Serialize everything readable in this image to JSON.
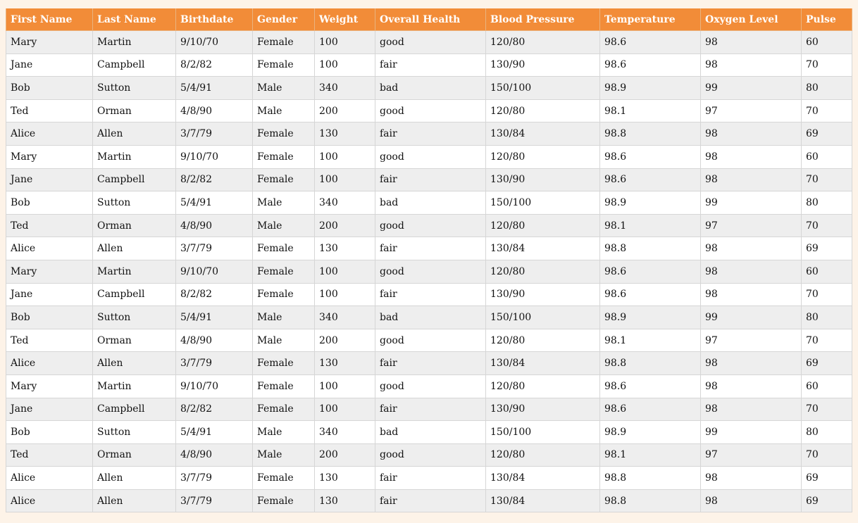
{
  "table": {
    "header_color": "#f28c38",
    "columns": [
      "First Name",
      "Last Name",
      "Birthdate",
      "Gender",
      "Weight",
      "Overall Health",
      "Blood Pressure",
      "Temperature",
      "Oxygen Level",
      "Pulse"
    ],
    "rows": [
      [
        "Mary",
        "Martin",
        "9/10/70",
        "Female",
        "100",
        "good",
        "120/80",
        "98.6",
        "98",
        "60"
      ],
      [
        "Jane",
        "Campbell",
        "8/2/82",
        "Female",
        "100",
        "fair",
        "130/90",
        "98.6",
        "98",
        "70"
      ],
      [
        "Bob",
        "Sutton",
        "5/4/91",
        "Male",
        "340",
        "bad",
        "150/100",
        "98.9",
        "99",
        "80"
      ],
      [
        "Ted",
        "Orman",
        "4/8/90",
        "Male",
        "200",
        "good",
        "120/80",
        "98.1",
        "97",
        "70"
      ],
      [
        "Alice",
        "Allen",
        "3/7/79",
        "Female",
        "130",
        "fair",
        "130/84",
        "98.8",
        "98",
        "69"
      ],
      [
        "Mary",
        "Martin",
        "9/10/70",
        "Female",
        "100",
        "good",
        "120/80",
        "98.6",
        "98",
        "60"
      ],
      [
        "Jane",
        "Campbell",
        "8/2/82",
        "Female",
        "100",
        "fair",
        "130/90",
        "98.6",
        "98",
        "70"
      ],
      [
        "Bob",
        "Sutton",
        "5/4/91",
        "Male",
        "340",
        "bad",
        "150/100",
        "98.9",
        "99",
        "80"
      ],
      [
        "Ted",
        "Orman",
        "4/8/90",
        "Male",
        "200",
        "good",
        "120/80",
        "98.1",
        "97",
        "70"
      ],
      [
        "Alice",
        "Allen",
        "3/7/79",
        "Female",
        "130",
        "fair",
        "130/84",
        "98.8",
        "98",
        "69"
      ],
      [
        "Mary",
        "Martin",
        "9/10/70",
        "Female",
        "100",
        "good",
        "120/80",
        "98.6",
        "98",
        "60"
      ],
      [
        "Jane",
        "Campbell",
        "8/2/82",
        "Female",
        "100",
        "fair",
        "130/90",
        "98.6",
        "98",
        "70"
      ],
      [
        "Bob",
        "Sutton",
        "5/4/91",
        "Male",
        "340",
        "bad",
        "150/100",
        "98.9",
        "99",
        "80"
      ],
      [
        "Ted",
        "Orman",
        "4/8/90",
        "Male",
        "200",
        "good",
        "120/80",
        "98.1",
        "97",
        "70"
      ],
      [
        "Alice",
        "Allen",
        "3/7/79",
        "Female",
        "130",
        "fair",
        "130/84",
        "98.8",
        "98",
        "69"
      ],
      [
        "Mary",
        "Martin",
        "9/10/70",
        "Female",
        "100",
        "good",
        "120/80",
        "98.6",
        "98",
        "60"
      ],
      [
        "Jane",
        "Campbell",
        "8/2/82",
        "Female",
        "100",
        "fair",
        "130/90",
        "98.6",
        "98",
        "70"
      ],
      [
        "Bob",
        "Sutton",
        "5/4/91",
        "Male",
        "340",
        "bad",
        "150/100",
        "98.9",
        "99",
        "80"
      ],
      [
        "Ted",
        "Orman",
        "4/8/90",
        "Male",
        "200",
        "good",
        "120/80",
        "98.1",
        "97",
        "70"
      ],
      [
        "Alice",
        "Allen",
        "3/7/79",
        "Female",
        "130",
        "fair",
        "130/84",
        "98.8",
        "98",
        "69"
      ],
      [
        "Alice",
        "Allen",
        "3/7/79",
        "Female",
        "130",
        "fair",
        "130/84",
        "98.8",
        "98",
        "69"
      ]
    ]
  }
}
